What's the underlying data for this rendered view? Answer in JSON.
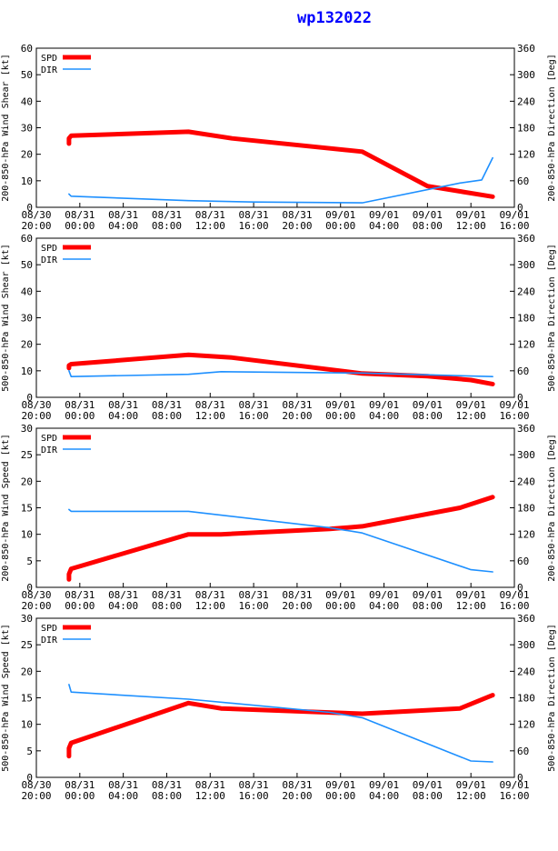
{
  "chart_title": "wp132022",
  "legend": {
    "spd": "SPD",
    "dir": "DIR"
  },
  "colors": {
    "spd": "#ff0000",
    "dir": "#1e90ff",
    "title": "#0000ff",
    "axis": "#000000"
  },
  "x_ticks": [
    [
      "08/30",
      "20:00"
    ],
    [
      "08/31",
      "00:00"
    ],
    [
      "08/31",
      "04:00"
    ],
    [
      "08/31",
      "08:00"
    ],
    [
      "08/31",
      "12:00"
    ],
    [
      "08/31",
      "16:00"
    ],
    [
      "08/31",
      "20:00"
    ],
    [
      "09/01",
      "00:00"
    ],
    [
      "09/01",
      "04:00"
    ],
    [
      "09/01",
      "08:00"
    ],
    [
      "09/01",
      "12:00"
    ],
    [
      "09/01",
      "16:00"
    ]
  ],
  "chart_data": [
    {
      "type": "line",
      "ylabel": "200-850-hPa Wind Shear [kt]",
      "y2label": "200-850-hPa Direction [Deg]",
      "ylim": [
        0,
        60
      ],
      "yticks": [
        0,
        10,
        20,
        30,
        40,
        50,
        60
      ],
      "y2lim": [
        0,
        360
      ],
      "y2ticks": [
        0,
        60,
        120,
        180,
        240,
        300,
        360
      ],
      "xlim_hours": [
        0,
        44
      ],
      "series": [
        {
          "name": "SPD",
          "axis": "left",
          "x": [
            3,
            3,
            3.2,
            14,
            18,
            30,
            36,
            42
          ],
          "y": [
            24,
            26,
            27,
            28.5,
            26,
            21,
            8,
            4
          ]
        },
        {
          "name": "DIR",
          "axis": "right",
          "x": [
            3,
            3.2,
            14,
            20,
            30,
            39,
            41,
            42
          ],
          "y": [
            30,
            25,
            15,
            12,
            10,
            55,
            62,
            112
          ]
        }
      ]
    },
    {
      "type": "line",
      "ylabel": "500-850-hPa Wind Shear [kt]",
      "y2label": "500-850-hPa Direction [Deg]",
      "ylim": [
        0,
        60
      ],
      "yticks": [
        0,
        10,
        20,
        30,
        40,
        50,
        60
      ],
      "y2lim": [
        0,
        360
      ],
      "y2ticks": [
        0,
        60,
        120,
        180,
        240,
        300,
        360
      ],
      "xlim_hours": [
        0,
        44
      ],
      "series": [
        {
          "name": "SPD",
          "axis": "left",
          "x": [
            3,
            3,
            3.2,
            14,
            18,
            30,
            36,
            40,
            42
          ],
          "y": [
            11,
            12,
            12.5,
            16,
            15,
            9,
            8,
            6.5,
            5
          ]
        },
        {
          "name": "DIR",
          "axis": "right",
          "x": [
            3,
            3.2,
            14,
            17,
            30,
            42
          ],
          "y": [
            60,
            47,
            52,
            58,
            55,
            47
          ]
        }
      ]
    },
    {
      "type": "line",
      "ylabel": "200-850-hPa Wind Speed [kt]",
      "y2label": "200-850-hPa Direction [Deg]",
      "ylim": [
        0,
        30
      ],
      "yticks": [
        0,
        5,
        10,
        15,
        20,
        25,
        30
      ],
      "y2lim": [
        0,
        360
      ],
      "y2ticks": [
        0,
        60,
        120,
        180,
        240,
        300,
        360
      ],
      "xlim_hours": [
        0,
        44
      ],
      "series": [
        {
          "name": "SPD",
          "axis": "left",
          "x": [
            3,
            3,
            3.2,
            14,
            17,
            27,
            30,
            39,
            42
          ],
          "y": [
            1.5,
            2.5,
            3.5,
            10,
            10,
            11,
            11.5,
            15,
            17
          ]
        },
        {
          "name": "DIR",
          "axis": "right",
          "x": [
            3,
            3.2,
            14,
            27,
            30,
            40,
            42
          ],
          "y": [
            176,
            172,
            172,
            135,
            123,
            40,
            35
          ]
        }
      ]
    },
    {
      "type": "line",
      "ylabel": "500-850-hPa Wind Speed [kt]",
      "y2label": "500-850-hPa Direction [Deg]",
      "ylim": [
        0,
        30
      ],
      "yticks": [
        0,
        5,
        10,
        15,
        20,
        25,
        30
      ],
      "y2lim": [
        0,
        360
      ],
      "y2ticks": [
        0,
        60,
        120,
        180,
        240,
        300,
        360
      ],
      "xlim_hours": [
        0,
        44
      ],
      "series": [
        {
          "name": "SPD",
          "axis": "left",
          "x": [
            3,
            3,
            3.2,
            14,
            17,
            30,
            39,
            42
          ],
          "y": [
            4,
            5.5,
            6.5,
            14,
            13,
            12,
            13,
            15.5
          ]
        },
        {
          "name": "DIR",
          "axis": "right",
          "x": [
            3,
            3.2,
            14,
            27,
            30,
            40,
            42
          ],
          "y": [
            210,
            193,
            177,
            147,
            135,
            37,
            35
          ]
        }
      ]
    }
  ]
}
